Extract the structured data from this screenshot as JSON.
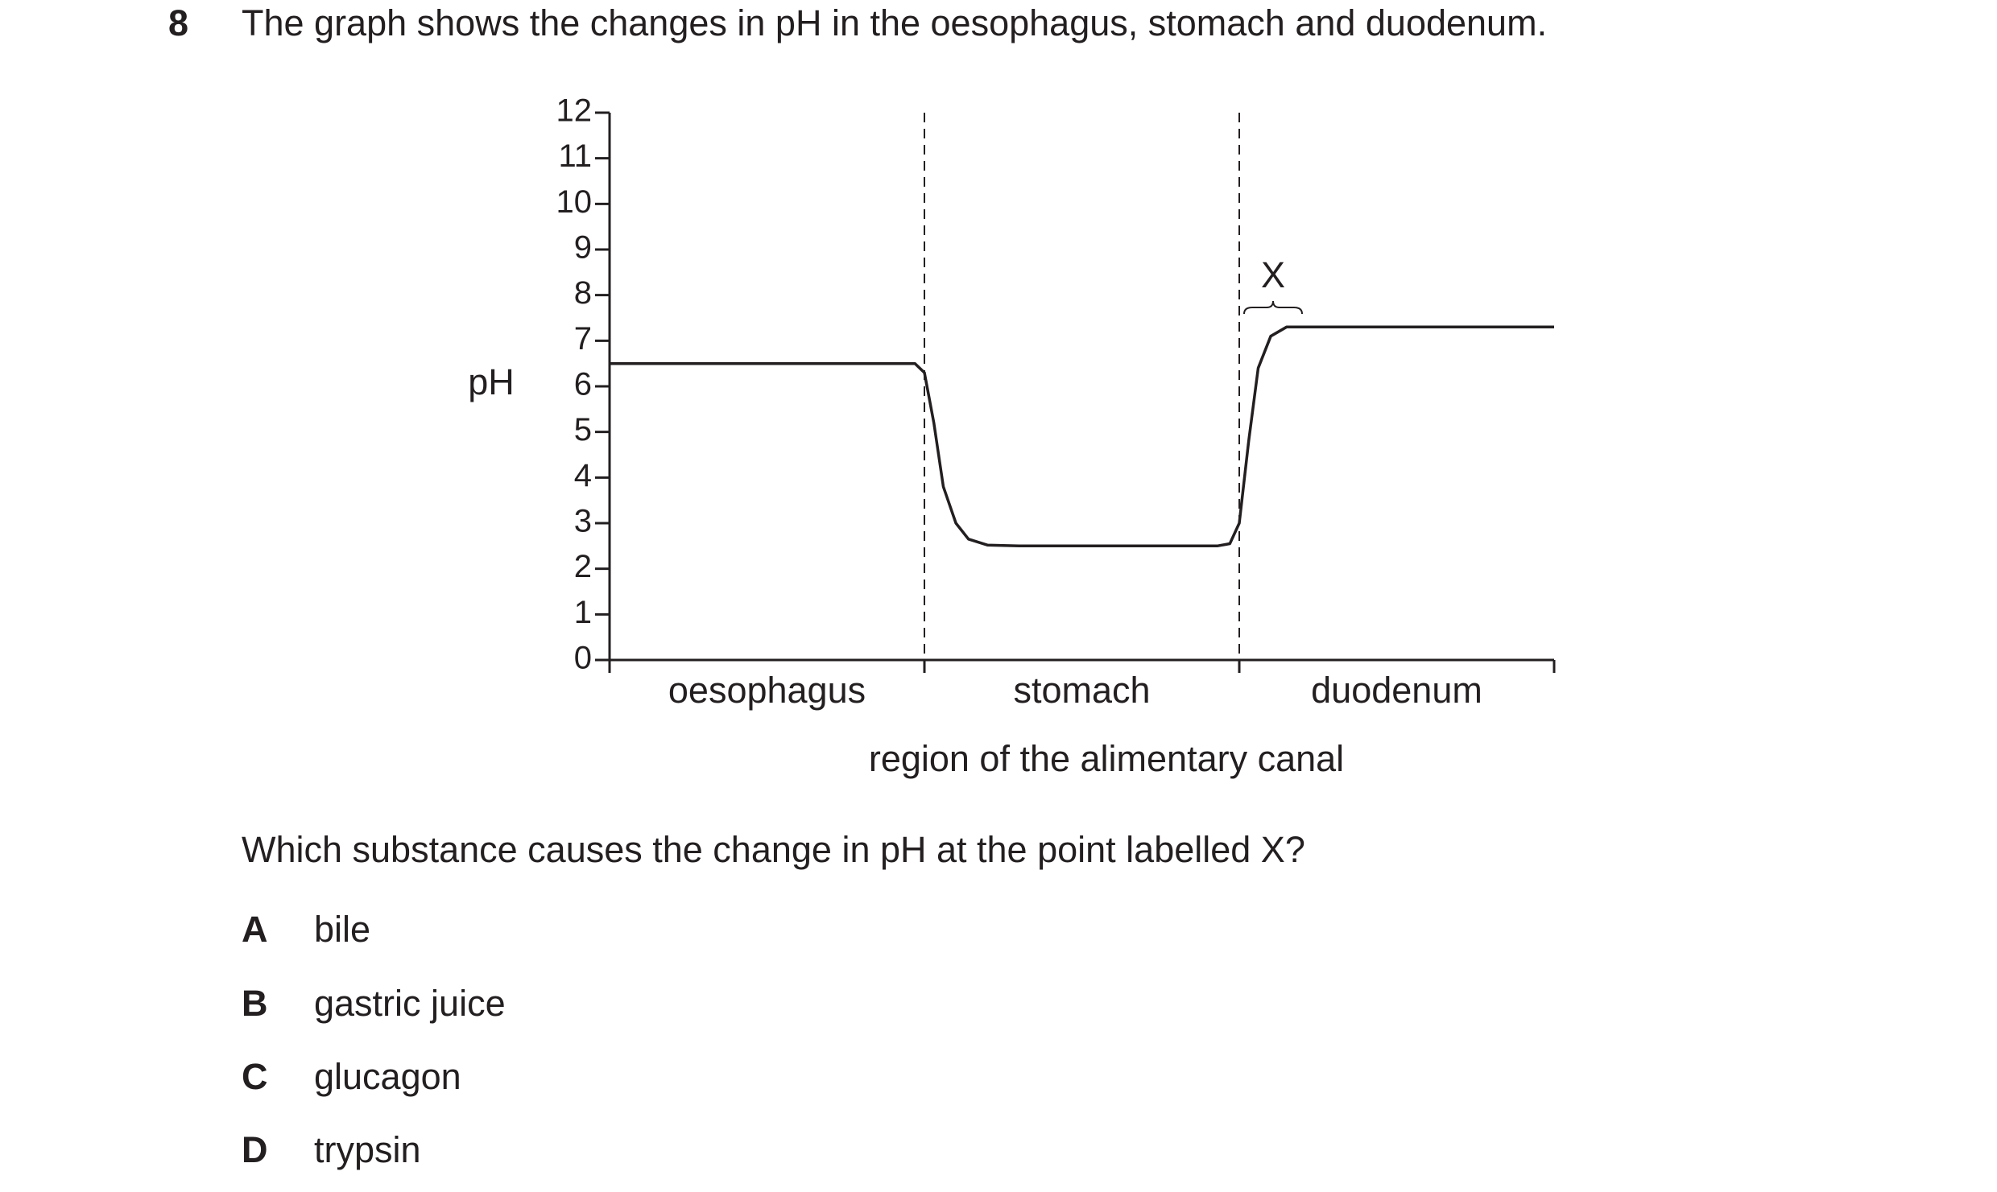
{
  "question_number": "8",
  "stem": "The graph shows the changes in pH in the oesophagus, stomach and duodenum.",
  "chart_data": {
    "type": "line",
    "ylabel": "pH",
    "xlabel": "region of the alimentary canal",
    "categories": [
      "oesophagus",
      "stomach",
      "duodenum"
    ],
    "x": [
      0,
      0.97,
      1.0,
      1.03,
      1.06,
      1.1,
      1.14,
      1.2,
      1.3,
      1.93,
      1.97,
      2.0,
      2.03,
      2.06,
      2.1,
      2.15,
      2.25,
      3.0
    ],
    "values": [
      6.5,
      6.5,
      6.3,
      5.2,
      3.8,
      3.0,
      2.65,
      2.52,
      2.5,
      2.5,
      2.55,
      3.0,
      4.8,
      6.4,
      7.1,
      7.3,
      7.3,
      7.3
    ],
    "color": "#231f20",
    "xlim": [
      0,
      3
    ],
    "xticks": [
      0,
      1,
      2,
      3
    ],
    "ylim": [
      0,
      12
    ],
    "yticks": [
      0,
      1,
      2,
      3,
      4,
      5,
      6,
      7,
      8,
      9,
      10,
      11,
      12
    ],
    "annotation": "X"
  },
  "question": "Which substance causes the change in pH at the point labelled X?",
  "options": [
    {
      "letter": "A",
      "text": "bile"
    },
    {
      "letter": "B",
      "text": "gastric juice"
    },
    {
      "letter": "C",
      "text": "glucagon"
    },
    {
      "letter": "D",
      "text": "trypsin"
    }
  ]
}
